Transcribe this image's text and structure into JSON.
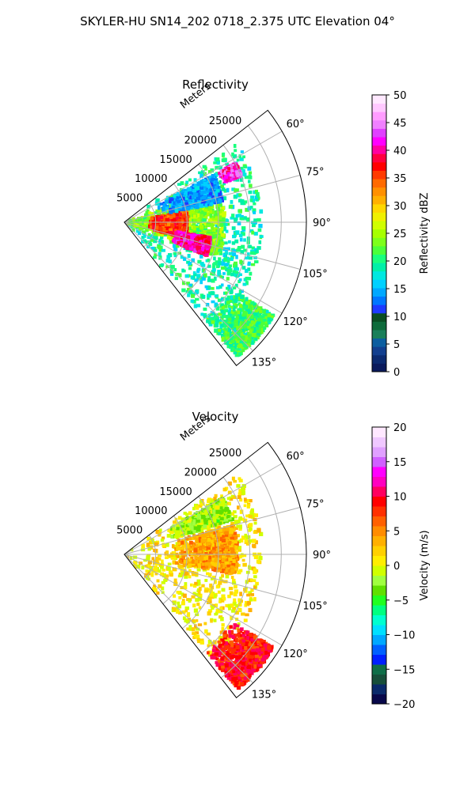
{
  "figure": {
    "title": "SKYLER-HU  SN14_202  0718_2.375 UTC Elevation 04°"
  },
  "chart_data": [
    {
      "type": "polar-sector",
      "title": "Reflectivity",
      "radial_label": "Meters",
      "radial_ticks": [
        "5000",
        "10000",
        "15000",
        "20000",
        "25000"
      ],
      "radial_tick_values": [
        5000,
        10000,
        15000,
        20000,
        25000
      ],
      "rlim": [
        0,
        29000
      ],
      "angle_range_deg": [
        52,
        142
      ],
      "angle_ticks": [
        "60°",
        "75°",
        "90°",
        "105°",
        "120°",
        "135°"
      ],
      "angle_tick_values": [
        60,
        75,
        90,
        105,
        120,
        135
      ],
      "grid": true,
      "colorbar": {
        "label": "Reflectivity dBZ",
        "min": 0,
        "max": 50,
        "ticks": [
          "0",
          "5",
          "10",
          "15",
          "20",
          "25",
          "30",
          "35",
          "40",
          "45",
          "50"
        ],
        "colormap": "pyart_HomeyerRainbow"
      },
      "echo_regions": [
        {
          "angle_deg": [
            55,
            140
          ],
          "range_m": [
            0,
            22000
          ],
          "level": 19
        },
        {
          "angle_deg": [
            70,
            110
          ],
          "range_m": [
            0,
            16000
          ],
          "level": 24
        },
        {
          "angle_deg": [
            80,
            104
          ],
          "range_m": [
            4000,
            10000
          ],
          "level": 36
        },
        {
          "angle_deg": [
            100,
            112
          ],
          "range_m": [
            8000,
            14000
          ],
          "level": 40
        },
        {
          "angle_deg": [
            62,
            68
          ],
          "range_m": [
            17000,
            20000
          ],
          "level": 42
        },
        {
          "angle_deg": [
            62,
            78
          ],
          "range_m": [
            6000,
            16000
          ],
          "level": 14
        },
        {
          "angle_deg": [
            122,
            140
          ],
          "range_m": [
            20000,
            28000
          ],
          "level": 21
        }
      ]
    },
    {
      "type": "polar-sector",
      "title": "Velocity",
      "radial_label": "Meters",
      "radial_ticks": [
        "5000",
        "10000",
        "15000",
        "20000",
        "25000"
      ],
      "radial_tick_values": [
        5000,
        10000,
        15000,
        20000,
        25000
      ],
      "rlim": [
        0,
        29000
      ],
      "angle_range_deg": [
        52,
        142
      ],
      "angle_ticks": [
        "60°",
        "75°",
        "90°",
        "105°",
        "120°",
        "135°"
      ],
      "angle_tick_values": [
        60,
        75,
        90,
        105,
        120,
        135
      ],
      "grid": true,
      "colorbar": {
        "label": "Velocity (m/s)",
        "min": -20,
        "max": 20,
        "ticks": [
          "−20",
          "−15",
          "−10",
          "−5",
          "0",
          "5",
          "10",
          "15",
          "20"
        ],
        "colormap": "pyart_BuDRd18"
      },
      "echo_regions": [
        {
          "angle_deg": [
            55,
            140
          ],
          "range_m": [
            0,
            22000
          ],
          "level": 1
        },
        {
          "angle_deg": [
            75,
            100
          ],
          "range_m": [
            8000,
            18000
          ],
          "level": 4
        },
        {
          "angle_deg": [
            60,
            72
          ],
          "range_m": [
            8000,
            18000
          ],
          "level": -2
        },
        {
          "angle_deg": [
            122,
            140
          ],
          "range_m": [
            20000,
            28000
          ],
          "level": 9
        }
      ]
    }
  ]
}
